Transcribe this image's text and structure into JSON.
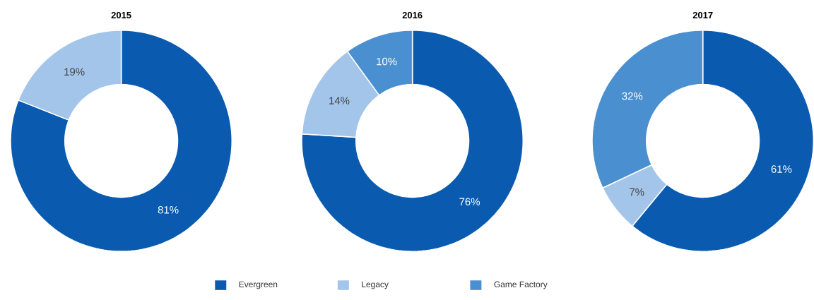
{
  "chart_data": [
    {
      "type": "donut",
      "title": "2015",
      "values": [
        81,
        19
      ],
      "colors": [
        "#0a5bb0",
        "#a3c5ea"
      ],
      "value_labels": [
        "81%",
        "19%"
      ]
    },
    {
      "type": "donut",
      "title": "2016",
      "categories": [
        "Evergreen",
        "Legacy",
        "Game Factory"
      ],
      "values": [
        76,
        14,
        10
      ],
      "colors": [
        "#0a5bb0",
        "#a3c5ea",
        "#4a90d0"
      ],
      "value_labels": [
        "76%",
        "14%",
        "10%"
      ],
      "legend": "bottom"
    },
    {
      "type": "donut",
      "title": "2017",
      "values": [
        61,
        7,
        32
      ],
      "colors": [
        "#0a5bb0",
        "#a3c5ea",
        "#4a90d0"
      ],
      "value_labels": [
        "61%",
        "7%",
        "32%"
      ]
    }
  ]
}
